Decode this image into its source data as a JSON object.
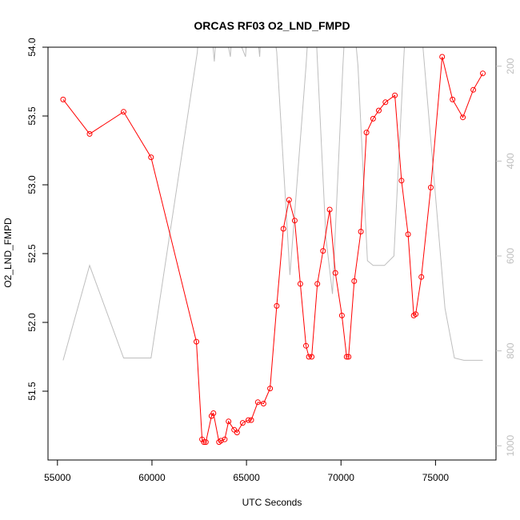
{
  "chart_data": {
    "type": "line",
    "title": "ORCAS RF03 O2_LND_FMPD",
    "xlabel": "UTC Seconds",
    "ylabel": "O2_LND_FMPD",
    "xlim": [
      54500,
      78200
    ],
    "ylim": [
      51.0,
      54.0
    ],
    "y2lim": [
      1030,
      160
    ],
    "x_ticks": [
      55000,
      60000,
      65000,
      70000,
      75000
    ],
    "y_ticks": [
      51.5,
      52.0,
      52.5,
      53.0,
      53.5,
      54.0
    ],
    "y2_ticks": [
      200,
      400,
      600,
      800,
      1000
    ],
    "grid": false,
    "series": [
      {
        "color": "#ff0000",
        "marker": "circle",
        "axis": "left",
        "points": [
          [
            55300,
            53.62
          ],
          [
            56700,
            53.37
          ],
          [
            58500,
            53.53
          ],
          [
            59950,
            53.2
          ],
          [
            62350,
            51.86
          ],
          [
            62650,
            51.15
          ],
          [
            62750,
            51.13
          ],
          [
            62850,
            51.13
          ],
          [
            63150,
            51.32
          ],
          [
            63250,
            51.34
          ],
          [
            63550,
            51.13
          ],
          [
            63650,
            51.14
          ],
          [
            63850,
            51.15
          ],
          [
            64050,
            51.28
          ],
          [
            64350,
            51.22
          ],
          [
            64500,
            51.2
          ],
          [
            64800,
            51.27
          ],
          [
            65100,
            51.29
          ],
          [
            65250,
            51.29
          ],
          [
            65600,
            51.42
          ],
          [
            65900,
            51.41
          ],
          [
            66250,
            51.52
          ],
          [
            66600,
            52.12
          ],
          [
            66950,
            52.68
          ],
          [
            67250,
            52.89
          ],
          [
            67550,
            52.74
          ],
          [
            67850,
            52.28
          ],
          [
            68150,
            51.83
          ],
          [
            68300,
            51.75
          ],
          [
            68450,
            51.75
          ],
          [
            68750,
            52.28
          ],
          [
            69050,
            52.52
          ],
          [
            69400,
            52.82
          ],
          [
            69700,
            52.36
          ],
          [
            70050,
            52.05
          ],
          [
            70300,
            51.75
          ],
          [
            70400,
            51.75
          ],
          [
            70700,
            52.3
          ],
          [
            71050,
            52.66
          ],
          [
            71350,
            53.38
          ],
          [
            71700,
            53.48
          ],
          [
            72000,
            53.54
          ],
          [
            72350,
            53.6
          ],
          [
            72850,
            53.65
          ],
          [
            73200,
            53.03
          ],
          [
            73550,
            52.64
          ],
          [
            73850,
            52.05
          ],
          [
            73950,
            52.06
          ],
          [
            74250,
            52.33
          ],
          [
            74750,
            52.98
          ],
          [
            75350,
            53.93
          ],
          [
            75900,
            53.62
          ],
          [
            76450,
            53.49
          ],
          [
            77000,
            53.69
          ],
          [
            77500,
            53.81
          ]
        ]
      },
      {
        "color": "#bebebe",
        "marker": "none",
        "axis": "right",
        "points": [
          [
            55300,
            820
          ],
          [
            56700,
            620
          ],
          [
            58500,
            815
          ],
          [
            59950,
            815
          ],
          [
            62400,
            170
          ],
          [
            62700,
            -20
          ],
          [
            63100,
            100
          ],
          [
            63300,
            190
          ],
          [
            63650,
            -20
          ],
          [
            64000,
            150
          ],
          [
            64150,
            180
          ],
          [
            64450,
            -20
          ],
          [
            64750,
            160
          ],
          [
            64950,
            180
          ],
          [
            65250,
            -20
          ],
          [
            65550,
            120
          ],
          [
            65700,
            180
          ],
          [
            65950,
            -20
          ],
          [
            66600,
            170
          ],
          [
            67300,
            640
          ],
          [
            68150,
            200
          ],
          [
            68500,
            -20
          ],
          [
            69200,
            560
          ],
          [
            69550,
            680
          ],
          [
            70100,
            200
          ],
          [
            70400,
            -20
          ],
          [
            70900,
            200
          ],
          [
            71400,
            610
          ],
          [
            71700,
            620
          ],
          [
            72300,
            620
          ],
          [
            72800,
            600
          ],
          [
            73300,
            200
          ],
          [
            73600,
            -20
          ],
          [
            74250,
            120
          ],
          [
            75500,
            710
          ],
          [
            76000,
            815
          ],
          [
            76500,
            820
          ],
          [
            77500,
            820
          ]
        ]
      }
    ]
  }
}
